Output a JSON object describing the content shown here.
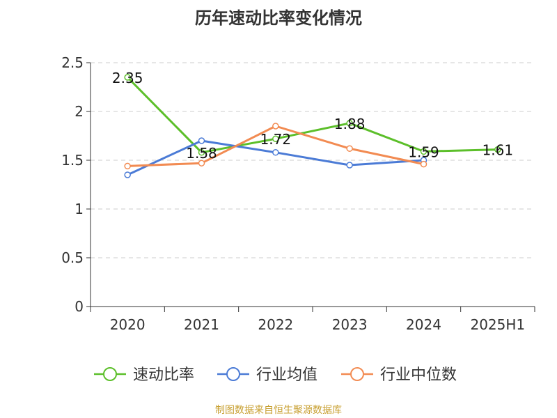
{
  "chart_data": {
    "type": "line",
    "title": "历年速动比率变化情况",
    "categories": [
      "2020",
      "2021",
      "2022",
      "2023",
      "2024",
      "2025H1"
    ],
    "ylim": [
      0,
      2.5
    ],
    "yticks": [
      "0",
      "0.5",
      "1",
      "1.5",
      "2",
      "2.5"
    ],
    "grid": true,
    "legend_position": "bottom",
    "series": [
      {
        "name": "速动比率",
        "color": "#5cbf2a",
        "values": [
          2.35,
          1.58,
          1.72,
          1.88,
          1.59,
          1.61
        ],
        "labels": [
          "2.35",
          "1.58",
          "1.72",
          "1.88",
          "1.59",
          "1.61"
        ]
      },
      {
        "name": "行业均值",
        "color": "#4b7bd6",
        "values": [
          1.35,
          1.7,
          1.58,
          1.45,
          1.5,
          null
        ]
      },
      {
        "name": "行业中位数",
        "color": "#f28b52",
        "values": [
          1.44,
          1.47,
          1.85,
          1.62,
          1.46,
          null
        ]
      }
    ]
  },
  "source_note": "制图数据来自恒生聚源数据库"
}
